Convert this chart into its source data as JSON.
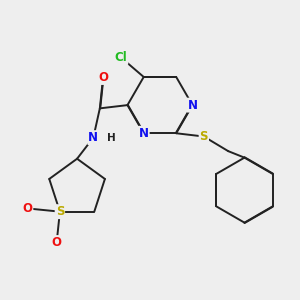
{
  "bg_color": "#eeeeee",
  "bond_color": "#222222",
  "bond_width": 1.4,
  "dbo": 0.012,
  "atom_colors": {
    "N": "#1010ee",
    "O": "#ee1010",
    "S": "#bbaa00",
    "Cl": "#22bb22",
    "H": "#222222"
  },
  "font_size": 8.5
}
